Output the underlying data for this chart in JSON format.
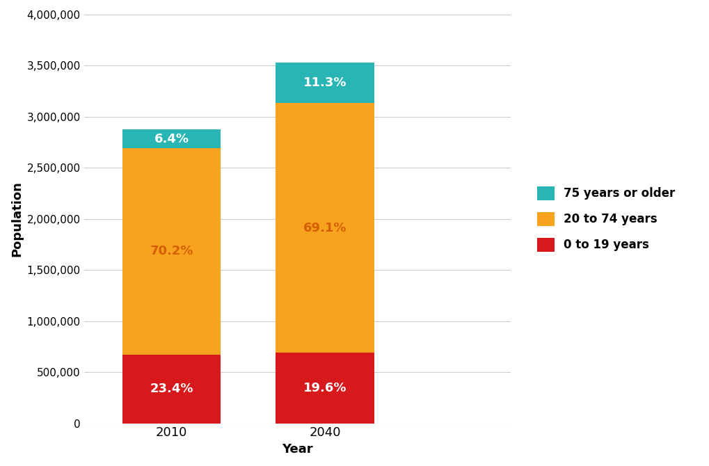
{
  "years": [
    "2010",
    "2040"
  ],
  "segments": [
    {
      "label": "0 to 19 years",
      "color": "#d7191c",
      "values": [
        672360,
        692440
      ],
      "percents": [
        "23.4%",
        "19.6%"
      ],
      "text_color": "#ffffff"
    },
    {
      "label": "20 to 74 years",
      "color": "#f8a31f",
      "values": [
        2019780,
        2441410
      ],
      "percents": [
        "70.2%",
        "69.1%"
      ],
      "text_color": "#d45f00"
    },
    {
      "label": "75 years or older",
      "color": "#2ab5b5",
      "values": [
        184860,
        399150
      ],
      "percents": [
        "6.4%",
        "11.3%"
      ],
      "text_color": "#ffffff"
    }
  ],
  "ylabel": "Population",
  "xlabel": "Year",
  "ylim": [
    0,
    4000000
  ],
  "yticks": [
    0,
    500000,
    1000000,
    1500000,
    2000000,
    2500000,
    3000000,
    3500000,
    4000000
  ],
  "background_color": "#ffffff",
  "bar_width": 0.45,
  "grid_color": "#cccccc",
  "legend_order": [
    2,
    1,
    0
  ]
}
